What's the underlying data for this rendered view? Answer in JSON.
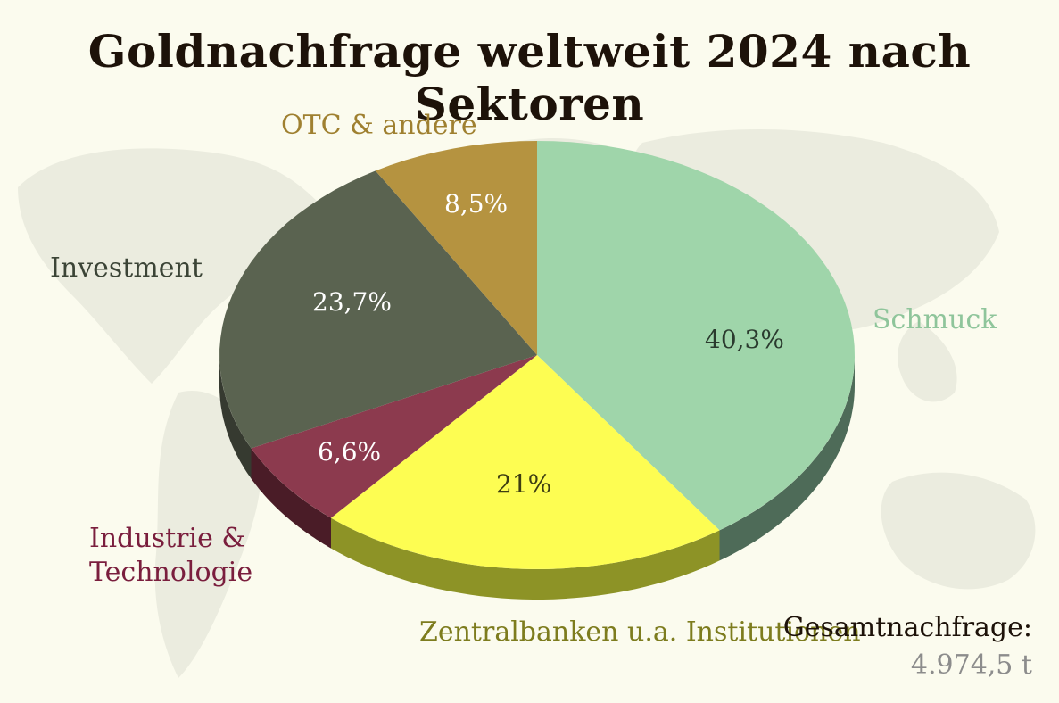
{
  "title": "Goldnachfrage weltweit 2024 nach Sektoren",
  "total": {
    "label": "Gesamtnachfrage:",
    "value": "4.974,5 t"
  },
  "chart_data": {
    "type": "pie",
    "title": "Goldnachfrage weltweit 2024 nach Sektoren",
    "unit": "%",
    "slices": [
      {
        "name": "Schmuck",
        "value": 40.3,
        "label": "40,3%",
        "color": "#9fd5aa",
        "side": "#4e6b58",
        "label_color": "#8fc59b",
        "pct_color": "#2a3a2e"
      },
      {
        "name": "Zentralbanken u.a. Institutionen",
        "value": 21.0,
        "label": "21%",
        "color": "#fdfd52",
        "side": "#8d9326",
        "label_color": "#7d7c1e",
        "pct_color": "#3d3d12"
      },
      {
        "name": "Industrie & Technologie",
        "value": 6.6,
        "label": "6,6%",
        "color": "#8c3a4e",
        "side": "#4a1c27",
        "label_color": "#7a1e3d",
        "pct_color": "#ffffff"
      },
      {
        "name": "Investment",
        "value": 23.7,
        "label": "23,7%",
        "color": "#5a6350",
        "side": "#363a30",
        "label_color": "#3b4436",
        "pct_color": "#ffffff"
      },
      {
        "name": "OTC & andere",
        "value": 8.5,
        "label": "8,5%",
        "color": "#b59340",
        "side": "#7a6128",
        "label_color": "#9f8030",
        "pct_color": "#ffffff"
      }
    ]
  }
}
